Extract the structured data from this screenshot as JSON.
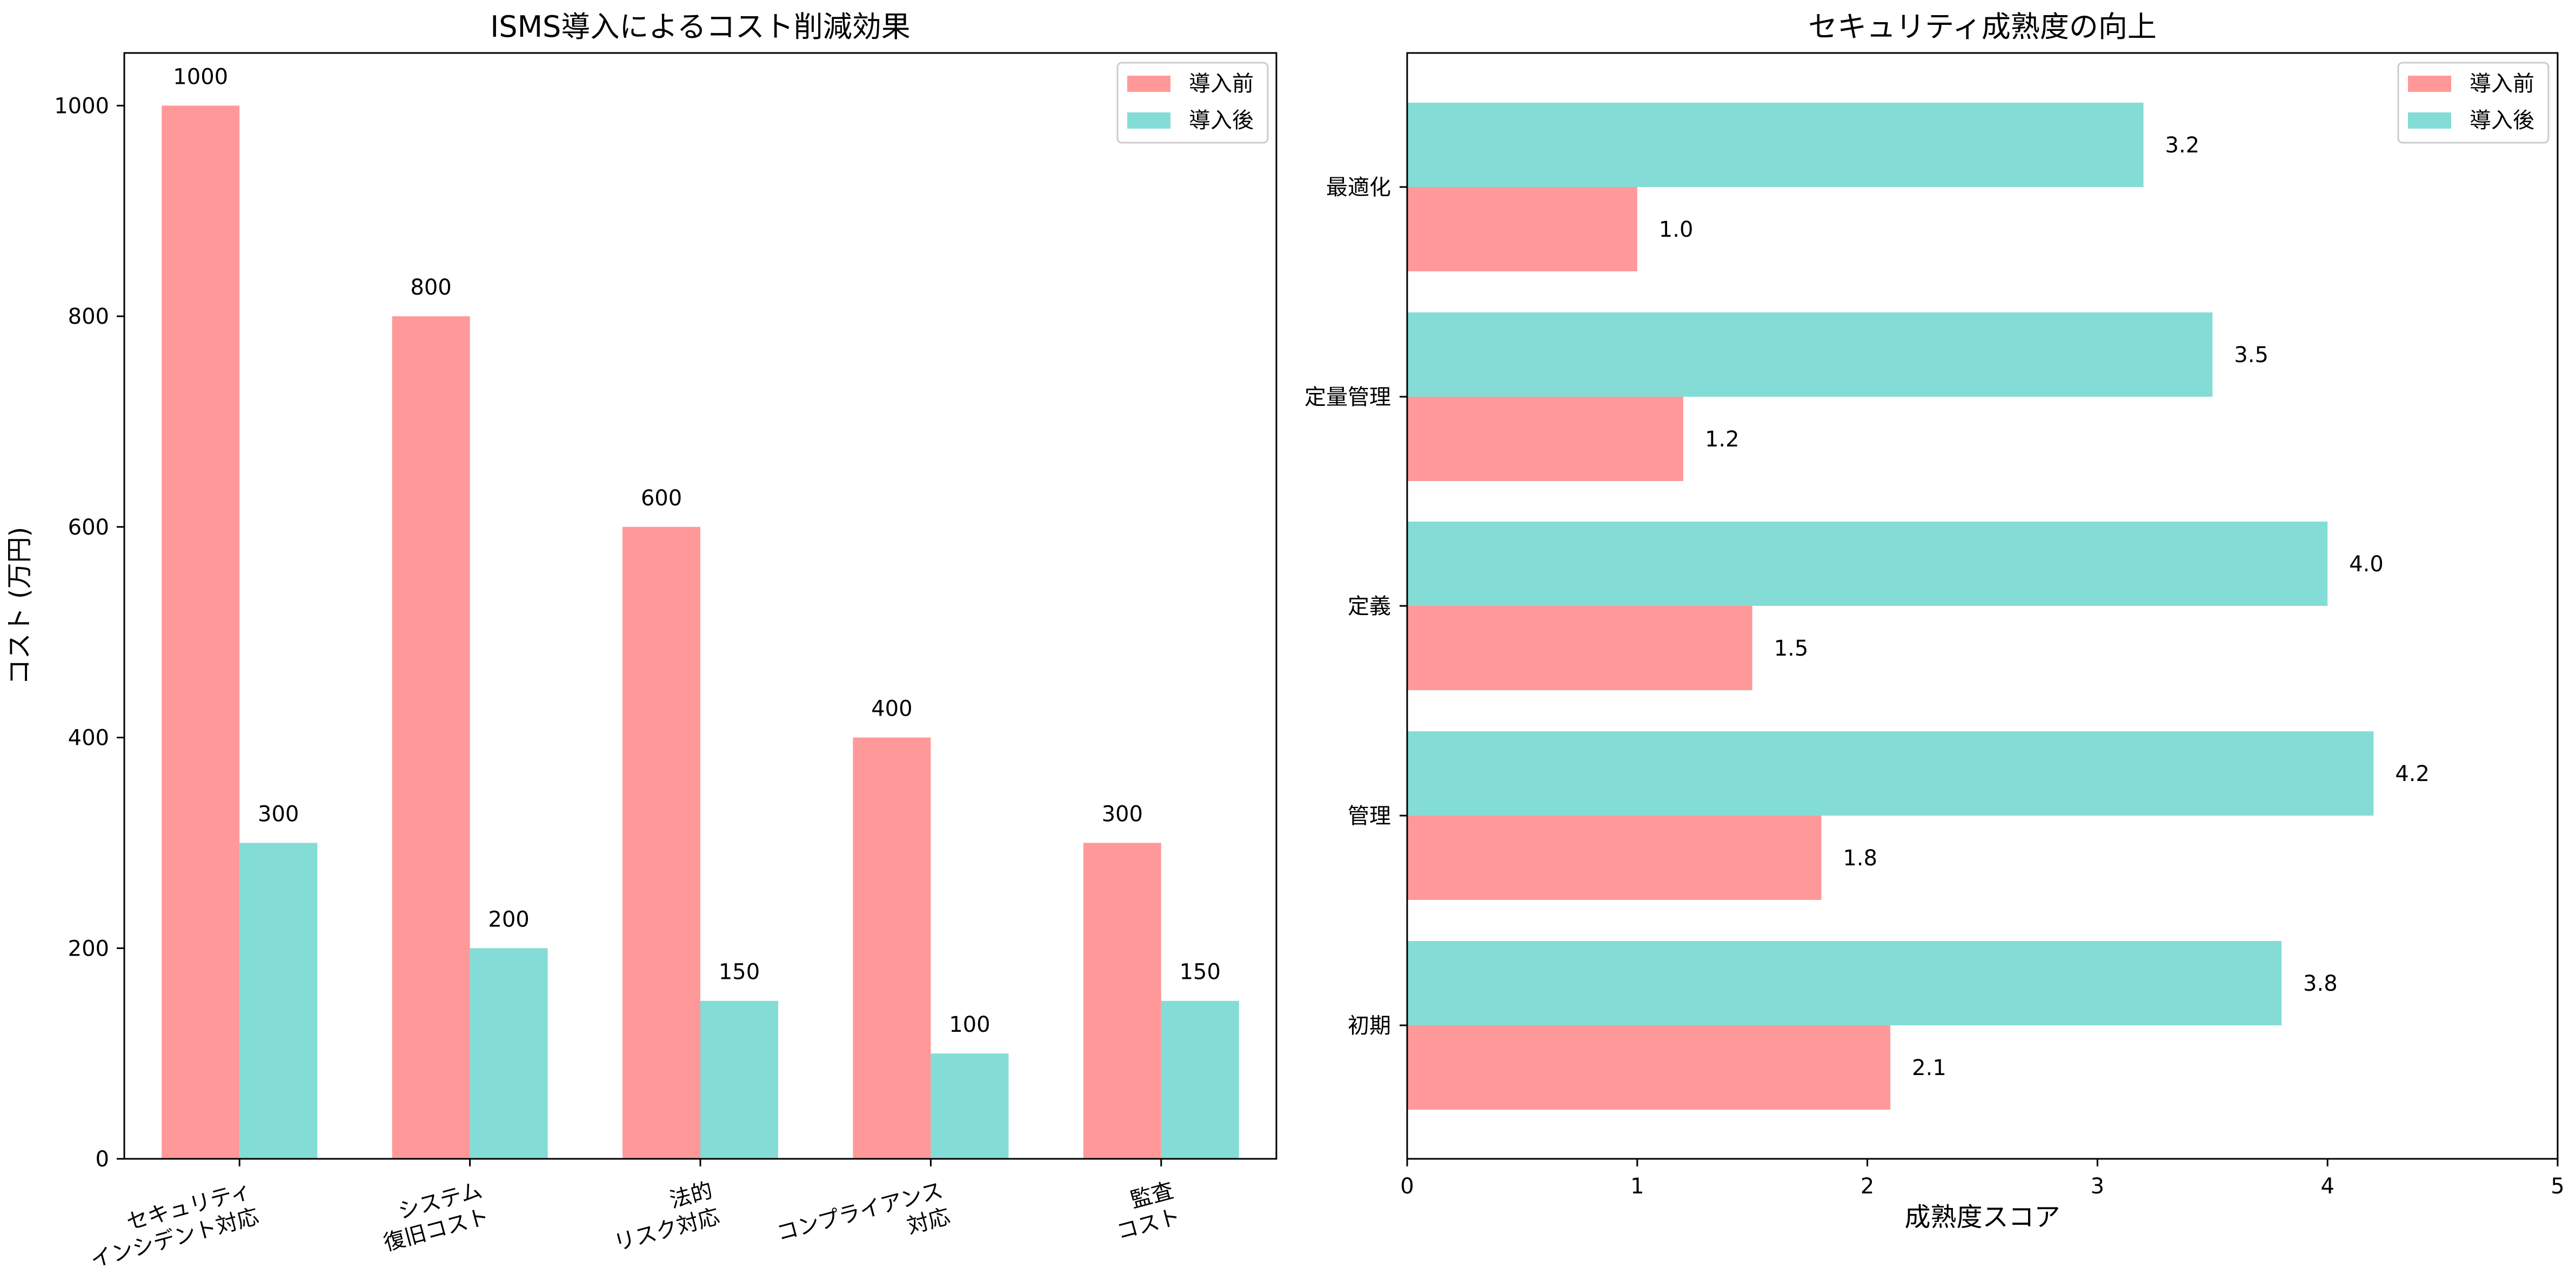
{
  "colors": {
    "before": "#FF9999",
    "after": "#84DCD6",
    "axis": "#000000",
    "legend_border": "#cccccc"
  },
  "legend": {
    "before": "導入前",
    "after": "導入後"
  },
  "chart_data": [
    {
      "type": "bar",
      "title": "ISMS導入によるコスト削減効果",
      "xlabel": "",
      "ylabel": "コスト (万円)",
      "categories": [
        [
          "セキュリティ",
          "インシデント対応"
        ],
        [
          "システム",
          "復旧コスト"
        ],
        [
          "法的",
          "リスク対応"
        ],
        [
          "コンプライアンス",
          "対応"
        ],
        [
          "監査",
          "コスト"
        ]
      ],
      "series": [
        {
          "name": "導入前",
          "values": [
            1000,
            800,
            600,
            400,
            300
          ]
        },
        {
          "name": "導入後",
          "values": [
            300,
            200,
            150,
            100,
            150
          ]
        }
      ],
      "ylim": [
        0,
        1050
      ],
      "yticks": [
        0,
        200,
        400,
        600,
        800,
        1000
      ],
      "legend_position": "top-right",
      "grid": false
    },
    {
      "type": "bar",
      "orientation": "horizontal",
      "title": "セキュリティ成熟度の向上",
      "xlabel": "成熟度スコア",
      "ylabel": "",
      "categories": [
        "初期",
        "管理",
        "定義",
        "定量管理",
        "最適化"
      ],
      "series": [
        {
          "name": "導入前",
          "values": [
            2.1,
            1.8,
            1.5,
            1.2,
            1.0
          ]
        },
        {
          "name": "導入後",
          "values": [
            3.8,
            4.2,
            4.0,
            3.5,
            3.2
          ]
        }
      ],
      "xlim": [
        0,
        5
      ],
      "xticks": [
        0,
        1,
        2,
        3,
        4,
        5
      ],
      "legend_position": "top-right",
      "grid": false
    }
  ]
}
